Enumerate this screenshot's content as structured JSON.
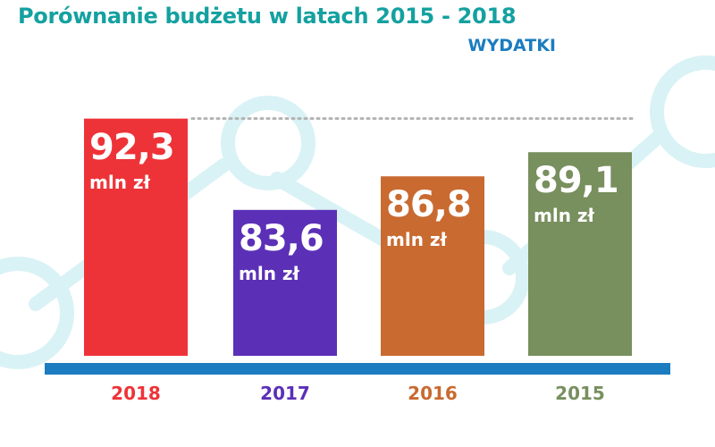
{
  "title": "Porównanie budżetu w latach 2015 - 2018",
  "subtitle": "WYDATKI",
  "colors": {
    "title": "#14a1a0",
    "subtitle": "#1b7cc0",
    "axis": "#1b7cc0",
    "decoration": "#d9f2f5",
    "dotted_line": "#b3b3b3"
  },
  "chart_data": {
    "type": "bar",
    "title": "Porównanie budżetu w latach 2015 - 2018",
    "subtitle": "WYDATKI",
    "categories": [
      "2018",
      "2017",
      "2016",
      "2015"
    ],
    "values": [
      92.3,
      83.6,
      86.8,
      89.1
    ],
    "value_labels": [
      "92,3",
      "83,6",
      "86,8",
      "89,1"
    ],
    "unit": "mln zł",
    "bar_colors": [
      "#ee3338",
      "#5b30b7",
      "#c96a30",
      "#788f5e"
    ],
    "ylim": [
      69.7,
      94.4
    ],
    "reference_line": {
      "value": 92.3,
      "style": "dotted"
    },
    "grid": false,
    "legend": "none"
  }
}
